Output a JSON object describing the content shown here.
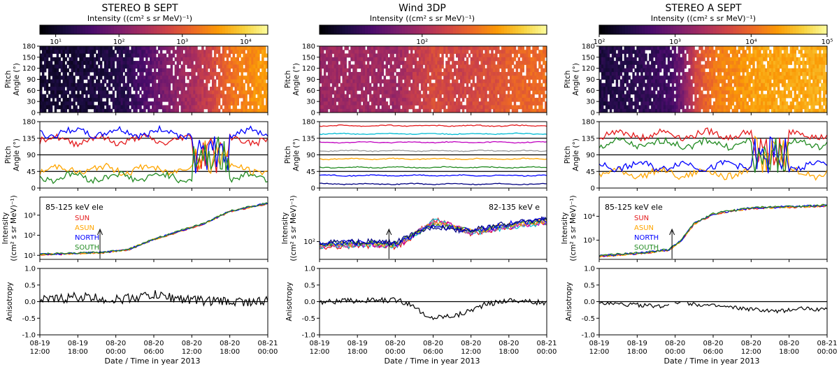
{
  "figure": {
    "common_xlabel": "Date / Time in year 2013",
    "time_ticks": [
      "08-19\n12:00",
      "08-19\n18:00",
      "08-20\n00:00",
      "08-20\n06:00",
      "08-20\n12:00",
      "08-20\n18:00",
      "08-21\n00:00"
    ],
    "colorbar_label": "Intensity ((cm² s sr MeV)⁻¹)",
    "pa_ylabel": [
      "Pitch",
      "Angle (°)"
    ],
    "int_ylabel": [
      "Intensity",
      "((cm² s sr MeV)⁻¹)"
    ],
    "anis_ylabel": "Anisotropy",
    "colormap": [
      "#000004",
      "#1b0c41",
      "#4a0c6b",
      "#781c6d",
      "#a52c60",
      "#cf4446",
      "#ed6925",
      "#fb9b06",
      "#f7d13d",
      "#fcffa4"
    ]
  },
  "chart_data": [
    {
      "type": "line",
      "title": "STEREO B SEPT",
      "colorbar": {
        "log_min": 0.75,
        "log_max": 4.35,
        "ticks": [
          {
            "v": 1,
            "label": "10¹"
          },
          {
            "v": 2,
            "label": "10²"
          },
          {
            "v": 3,
            "label": "10³"
          },
          {
            "v": 4,
            "label": "10⁴"
          }
        ]
      },
      "x_hours": [
        0,
        36
      ],
      "pitch_angle_ticks": [
        0,
        30,
        60,
        90,
        120,
        150,
        180
      ],
      "pa_lines_ticks": [
        0,
        45,
        90,
        135,
        180
      ],
      "pa_lines": [
        {
          "name": "SUN",
          "color": "#e41a1c",
          "base": 130,
          "amp": 15
        },
        {
          "name": "ASUN",
          "color": "#ffa500",
          "base": 50,
          "amp": 15
        },
        {
          "name": "NORTH",
          "color": "#0000ff",
          "base": 150,
          "amp": 15
        },
        {
          "name": "SOUTH",
          "color": "#228b22",
          "base": 30,
          "amp": 15
        }
      ],
      "intensity": {
        "label": "85-125 keV ele",
        "ylim_log": [
          0.8,
          3.9
        ],
        "ticks": [
          {
            "v": 1,
            "label": "10¹"
          },
          {
            "v": 2,
            "label": "10²"
          },
          {
            "v": 3,
            "label": "10³"
          }
        ],
        "profile": [
          [
            0,
            1.05
          ],
          [
            6,
            1.1
          ],
          [
            10,
            1.15
          ],
          [
            14,
            1.3
          ],
          [
            18,
            1.8
          ],
          [
            22,
            2.2
          ],
          [
            26,
            2.6
          ],
          [
            30,
            3.2
          ],
          [
            36,
            3.6
          ]
        ],
        "legend": [
          {
            "name": "SUN",
            "color": "#e41a1c"
          },
          {
            "name": "ASUN",
            "color": "#ffa500"
          },
          {
            "name": "NORTH",
            "color": "#0000ff"
          },
          {
            "name": "SOUTH",
            "color": "#228b22"
          }
        ],
        "arrow_hour": 9.5
      },
      "anisotropy": {
        "ylim": [
          -1,
          1
        ],
        "ticks": [
          "-1.0",
          "-0.5",
          "0.0",
          "0.5",
          "1.0"
        ],
        "profile": [
          [
            0,
            0.02
          ],
          [
            6,
            0.15
          ],
          [
            12,
            0.05
          ],
          [
            18,
            0.2
          ],
          [
            24,
            0.05
          ],
          [
            30,
            0.0
          ],
          [
            36,
            0.0
          ]
        ],
        "noise": 0.15,
        "gaps": []
      }
    },
    {
      "type": "line",
      "title": "Wind 3DP",
      "colorbar": {
        "log_min": 1.3,
        "log_max": 2.85,
        "ticks": [
          {
            "v": 2,
            "label": "10²"
          }
        ]
      },
      "x_hours": [
        0,
        36
      ],
      "pitch_angle_ticks": [
        0,
        30,
        60,
        90,
        120,
        150,
        180
      ],
      "pa_lines_ticks": [
        0,
        45,
        90,
        135,
        180
      ],
      "pa_lines": [
        {
          "name": "",
          "color": "#e41a1c",
          "base": 169,
          "amp": 2
        },
        {
          "name": "",
          "color": "#00bcd4",
          "base": 147,
          "amp": 2
        },
        {
          "name": "",
          "color": "#c000c0",
          "base": 124,
          "amp": 2
        },
        {
          "name": "",
          "color": "#999999",
          "base": 101,
          "amp": 2
        },
        {
          "name": "",
          "color": "#ffa500",
          "base": 79,
          "amp": 2
        },
        {
          "name": "",
          "color": "#228b22",
          "base": 56,
          "amp": 2
        },
        {
          "name": "",
          "color": "#0000ff",
          "base": 34,
          "amp": 2
        },
        {
          "name": "",
          "color": "#000080",
          "base": 11,
          "amp": 2
        }
      ],
      "intensity": {
        "label": "82-135 keV e",
        "ylim_log": [
          1.7,
          2.75
        ],
        "ticks": [
          {
            "v": 2,
            "label": "10²"
          }
        ],
        "profile": [
          [
            0,
            1.95
          ],
          [
            8,
            1.97
          ],
          [
            12,
            1.95
          ],
          [
            14,
            2.05
          ],
          [
            18,
            2.2
          ],
          [
            22,
            2.15
          ],
          [
            26,
            2.2
          ],
          [
            30,
            2.28
          ],
          [
            36,
            2.35
          ]
        ],
        "legend": [],
        "arrow_hour": 11
      },
      "anisotropy": {
        "ylim": [
          -1,
          1
        ],
        "ticks": [
          "-1.0",
          "-0.5",
          "0.0",
          "0.5",
          "1.0"
        ],
        "profile": [
          [
            0,
            0.0
          ],
          [
            12,
            0.05
          ],
          [
            15,
            -0.1
          ],
          [
            17,
            -0.5
          ],
          [
            22,
            -0.4
          ],
          [
            26,
            -0.1
          ],
          [
            30,
            0.05
          ],
          [
            36,
            -0.05
          ]
        ],
        "noise": 0.08,
        "gaps": []
      }
    },
    {
      "type": "line",
      "title": "STEREO A SEPT",
      "colorbar": {
        "log_min": 2.0,
        "log_max": 5.0,
        "ticks": [
          {
            "v": 2,
            "label": "10²"
          },
          {
            "v": 3,
            "label": "10³"
          },
          {
            "v": 4,
            "label": "10⁴"
          },
          {
            "v": 5,
            "label": "10⁵"
          }
        ]
      },
      "x_hours": [
        0,
        36
      ],
      "pitch_angle_ticks": [
        0,
        30,
        60,
        90,
        120,
        150,
        180
      ],
      "pa_lines_ticks": [
        0,
        45,
        90,
        135,
        180
      ],
      "pa_lines": [
        {
          "name": "SUN",
          "color": "#e41a1c",
          "base": 145,
          "amp": 15
        },
        {
          "name": "ASUN",
          "color": "#ffa500",
          "base": 40,
          "amp": 15
        },
        {
          "name": "NORTH",
          "color": "#0000ff",
          "base": 60,
          "amp": 15
        },
        {
          "name": "SOUTH",
          "color": "#228b22",
          "base": 120,
          "amp": 15
        }
      ],
      "intensity": {
        "label": "85-125 keV ele",
        "ylim_log": [
          2.2,
          4.8
        ],
        "ticks": [
          {
            "v": 3,
            "label": "10³"
          },
          {
            "v": 4,
            "label": "10⁴"
          }
        ],
        "profile": [
          [
            0,
            2.35
          ],
          [
            6,
            2.45
          ],
          [
            11,
            2.6
          ],
          [
            13,
            3.0
          ],
          [
            15,
            3.7
          ],
          [
            18,
            4.1
          ],
          [
            24,
            4.35
          ],
          [
            30,
            4.4
          ],
          [
            36,
            4.45
          ]
        ],
        "legend": [
          {
            "name": "SUN",
            "color": "#e41a1c"
          },
          {
            "name": "ASUN",
            "color": "#ffa500"
          },
          {
            "name": "NORTH",
            "color": "#0000ff"
          },
          {
            "name": "SOUTH",
            "color": "#228b22"
          }
        ],
        "arrow_hour": 11.5
      },
      "anisotropy": {
        "ylim": [
          -1,
          1
        ],
        "ticks": [
          "-1.0",
          "-0.5",
          "0.0",
          "0.5",
          "1.0"
        ],
        "profile": [
          [
            0,
            -0.05
          ],
          [
            6,
            -0.1
          ],
          [
            10,
            -0.15
          ],
          [
            12,
            0.0
          ],
          [
            16,
            -0.1
          ],
          [
            22,
            -0.2
          ],
          [
            28,
            -0.3
          ],
          [
            32,
            -0.2
          ],
          [
            36,
            -0.25
          ]
        ],
        "noise": 0.06,
        "gaps": [
          [
            11.2,
            11.8
          ],
          [
            13,
            13.8
          ]
        ]
      }
    }
  ]
}
